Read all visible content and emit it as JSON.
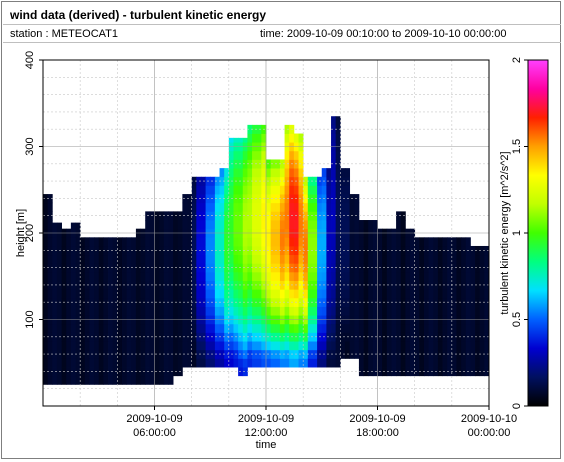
{
  "header": {
    "title": "wind data (derived) - turbulent kinetic energy",
    "station": "station : METEOCAT1",
    "time_range": "time: 2009-10-09 00:10:00 to 2009-10-10 00:00:00"
  },
  "colors": {
    "no_data": "#ffffff",
    "background_low": "#000a30",
    "colormap": [
      "#000000",
      "#001060",
      "#0000d0",
      "#0060ff",
      "#00e0ff",
      "#00ff80",
      "#40ff00",
      "#c0ff00",
      "#ffff00",
      "#ffa000",
      "#ff2000",
      "#ff00a0",
      "#ff40ff"
    ]
  },
  "chart_data": {
    "type": "heatmap",
    "title": "wind data (derived) - turbulent kinetic energy",
    "xlabel": "time",
    "ylabel": "height [m]",
    "x_tick_labels": [
      [
        "2009-10-09",
        "06:00:00"
      ],
      [
        "2009-10-09",
        "12:00:00"
      ],
      [
        "2009-10-09",
        "18:00:00"
      ],
      [
        "2009-10-10",
        "00:00:00"
      ]
    ],
    "y_tick_labels": [
      "100",
      "200",
      "300",
      "400"
    ],
    "ylim": [
      0,
      400
    ],
    "xlim_hours": [
      0,
      24
    ],
    "colorbar": {
      "label": "turbulent kinetic energy [m^2/s^2]",
      "range": [
        0,
        2
      ],
      "tick_labels": [
        "0",
        "0.5",
        "1",
        "1.5",
        "2"
      ]
    },
    "grid": true,
    "profile_top_height": [
      {
        "hour": 0.0,
        "top": 245
      },
      {
        "hour": 0.5,
        "top": 212
      },
      {
        "hour": 1.0,
        "top": 205
      },
      {
        "hour": 1.5,
        "top": 212
      },
      {
        "hour": 2.0,
        "top": 195
      },
      {
        "hour": 4.5,
        "top": 195
      },
      {
        "hour": 5.0,
        "top": 205
      },
      {
        "hour": 5.5,
        "top": 225
      },
      {
        "hour": 7.0,
        "top": 225
      },
      {
        "hour": 7.5,
        "top": 245
      },
      {
        "hour": 8.0,
        "top": 265
      },
      {
        "hour": 9.0,
        "top": 265
      },
      {
        "hour": 9.5,
        "top": 275
      },
      {
        "hour": 10.0,
        "top": 310
      },
      {
        "hour": 11.0,
        "top": 325
      },
      {
        "hour": 12.0,
        "top": 285
      },
      {
        "hour": 13.0,
        "top": 325
      },
      {
        "hour": 13.5,
        "top": 315
      },
      {
        "hour": 14.0,
        "top": 265
      },
      {
        "hour": 15.0,
        "top": 275
      },
      {
        "hour": 15.5,
        "top": 335
      },
      {
        "hour": 16.0,
        "top": 275
      },
      {
        "hour": 16.5,
        "top": 245
      },
      {
        "hour": 17.0,
        "top": 215
      },
      {
        "hour": 18.0,
        "top": 205
      },
      {
        "hour": 19.0,
        "top": 225
      },
      {
        "hour": 19.5,
        "top": 205
      },
      {
        "hour": 20.0,
        "top": 195
      },
      {
        "hour": 23.0,
        "top": 185
      },
      {
        "hour": 23.5,
        "top": 185
      }
    ],
    "profile_bottom_height": [
      {
        "hour": 0.0,
        "bottom": 25
      },
      {
        "hour": 7.0,
        "bottom": 35
      },
      {
        "hour": 7.5,
        "bottom": 45
      },
      {
        "hour": 10.0,
        "bottom": 45
      },
      {
        "hour": 10.5,
        "bottom": 35
      },
      {
        "hour": 11.0,
        "bottom": 45
      },
      {
        "hour": 16.0,
        "bottom": 55
      },
      {
        "hour": 17.0,
        "bottom": 35
      },
      {
        "hour": 24.0,
        "bottom": 35
      }
    ],
    "tke_columns": [
      {
        "hour": 8.0,
        "peak": 0.15
      },
      {
        "hour": 8.5,
        "peak": 0.35
      },
      {
        "hour": 9.0,
        "peak": 0.55
      },
      {
        "hour": 9.5,
        "peak": 0.75
      },
      {
        "hour": 10.0,
        "peak": 0.95
      },
      {
        "hour": 10.5,
        "peak": 1.05
      },
      {
        "hour": 11.0,
        "peak": 1.15
      },
      {
        "hour": 11.5,
        "peak": 1.25
      },
      {
        "hour": 12.0,
        "peak": 1.35
      },
      {
        "hour": 12.5,
        "peak": 1.45
      },
      {
        "hour": 13.0,
        "peak": 1.55
      },
      {
        "hour": 13.5,
        "peak": 1.7
      },
      {
        "hour": 14.0,
        "peak": 1.55
      },
      {
        "hour": 14.5,
        "peak": 1.1
      },
      {
        "hour": 15.0,
        "peak": 0.6
      },
      {
        "hour": 15.5,
        "peak": 0.3
      },
      {
        "hour": 16.0,
        "peak": 0.15
      }
    ]
  }
}
